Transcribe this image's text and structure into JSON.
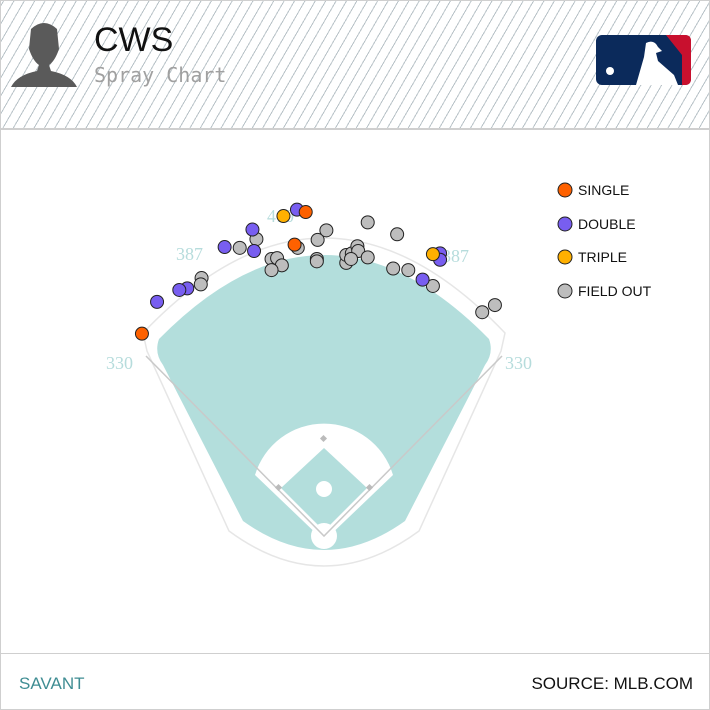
{
  "header": {
    "team": "CWS",
    "subtitle": "Spray Chart",
    "logo": "MLB"
  },
  "footer": {
    "left": "SAVANT",
    "right": "SOURCE: MLB.COM"
  },
  "chart_data": {
    "type": "scatter",
    "title": "Spray Chart",
    "units": "feet from home plate (x: toward right field, y: toward center field)",
    "fence_labels": {
      "left_line": "330",
      "left_center": "387",
      "center": "410",
      "right_center": "387",
      "right_line": "330"
    },
    "colors": {
      "SINGLE": "#fe6100",
      "DOUBLE": "#785ef0",
      "TRIPLE": "#ffb000",
      "FIELD OUT": "#bdbdbd",
      "grass": "#b3dedc"
    },
    "legend": {
      "position": "top-right",
      "items": [
        "SINGLE",
        "DOUBLE",
        "TRIPLE",
        "FIELD OUT"
      ]
    },
    "points": [
      {
        "type": "FIELD OUT",
        "x": -154,
        "y": 327
      },
      {
        "type": "FIELD OUT",
        "x": -155,
        "y": 319
      },
      {
        "type": "FIELD OUT",
        "x": -106,
        "y": 365
      },
      {
        "type": "FIELD OUT",
        "x": -85,
        "y": 376
      },
      {
        "type": "FIELD OUT",
        "x": -66,
        "y": 351
      },
      {
        "type": "FIELD OUT",
        "x": -59,
        "y": 352
      },
      {
        "type": "FIELD OUT",
        "x": -53,
        "y": 343
      },
      {
        "type": "FIELD OUT",
        "x": -66,
        "y": 337
      },
      {
        "type": "FIELD OUT",
        "x": -33,
        "y": 365
      },
      {
        "type": "FIELD OUT",
        "x": -8,
        "y": 375
      },
      {
        "type": "FIELD OUT",
        "x": 3,
        "y": 387
      },
      {
        "type": "FIELD OUT",
        "x": -9,
        "y": 351
      },
      {
        "type": "FIELD OUT",
        "x": -9,
        "y": 348
      },
      {
        "type": "FIELD OUT",
        "x": 28,
        "y": 346
      },
      {
        "type": "FIELD OUT",
        "x": 28,
        "y": 356
      },
      {
        "type": "FIELD OUT",
        "x": 35,
        "y": 358
      },
      {
        "type": "FIELD OUT",
        "x": 42,
        "y": 367
      },
      {
        "type": "FIELD OUT",
        "x": 43,
        "y": 361
      },
      {
        "type": "FIELD OUT",
        "x": 34,
        "y": 351
      },
      {
        "type": "FIELD OUT",
        "x": 55,
        "y": 353
      },
      {
        "type": "FIELD OUT",
        "x": 55,
        "y": 397
      },
      {
        "type": "FIELD OUT",
        "x": 92,
        "y": 382
      },
      {
        "type": "FIELD OUT",
        "x": 87,
        "y": 339
      },
      {
        "type": "FIELD OUT",
        "x": 106,
        "y": 337
      },
      {
        "type": "FIELD OUT",
        "x": 137,
        "y": 317
      },
      {
        "type": "FIELD OUT",
        "x": 199,
        "y": 284
      },
      {
        "type": "FIELD OUT",
        "x": 215,
        "y": 293
      },
      {
        "type": "DOUBLE",
        "x": -34,
        "y": 413
      },
      {
        "type": "DOUBLE",
        "x": -90,
        "y": 388
      },
      {
        "type": "DOUBLE",
        "x": -125,
        "y": 366
      },
      {
        "type": "DOUBLE",
        "x": -88,
        "y": 361
      },
      {
        "type": "DOUBLE",
        "x": -172,
        "y": 314
      },
      {
        "type": "DOUBLE",
        "x": -182,
        "y": 312
      },
      {
        "type": "DOUBLE",
        "x": -210,
        "y": 297
      },
      {
        "type": "DOUBLE",
        "x": 124,
        "y": 325
      },
      {
        "type": "DOUBLE",
        "x": 146,
        "y": 358
      },
      {
        "type": "DOUBLE",
        "x": 146,
        "y": 350
      },
      {
        "type": "SINGLE",
        "x": -23,
        "y": 410
      },
      {
        "type": "SINGLE",
        "x": -37,
        "y": 369
      },
      {
        "type": "SINGLE",
        "x": -229,
        "y": 257
      },
      {
        "type": "TRIPLE",
        "x": -51,
        "y": 405
      },
      {
        "type": "TRIPLE",
        "x": 137,
        "y": 357
      }
    ]
  }
}
